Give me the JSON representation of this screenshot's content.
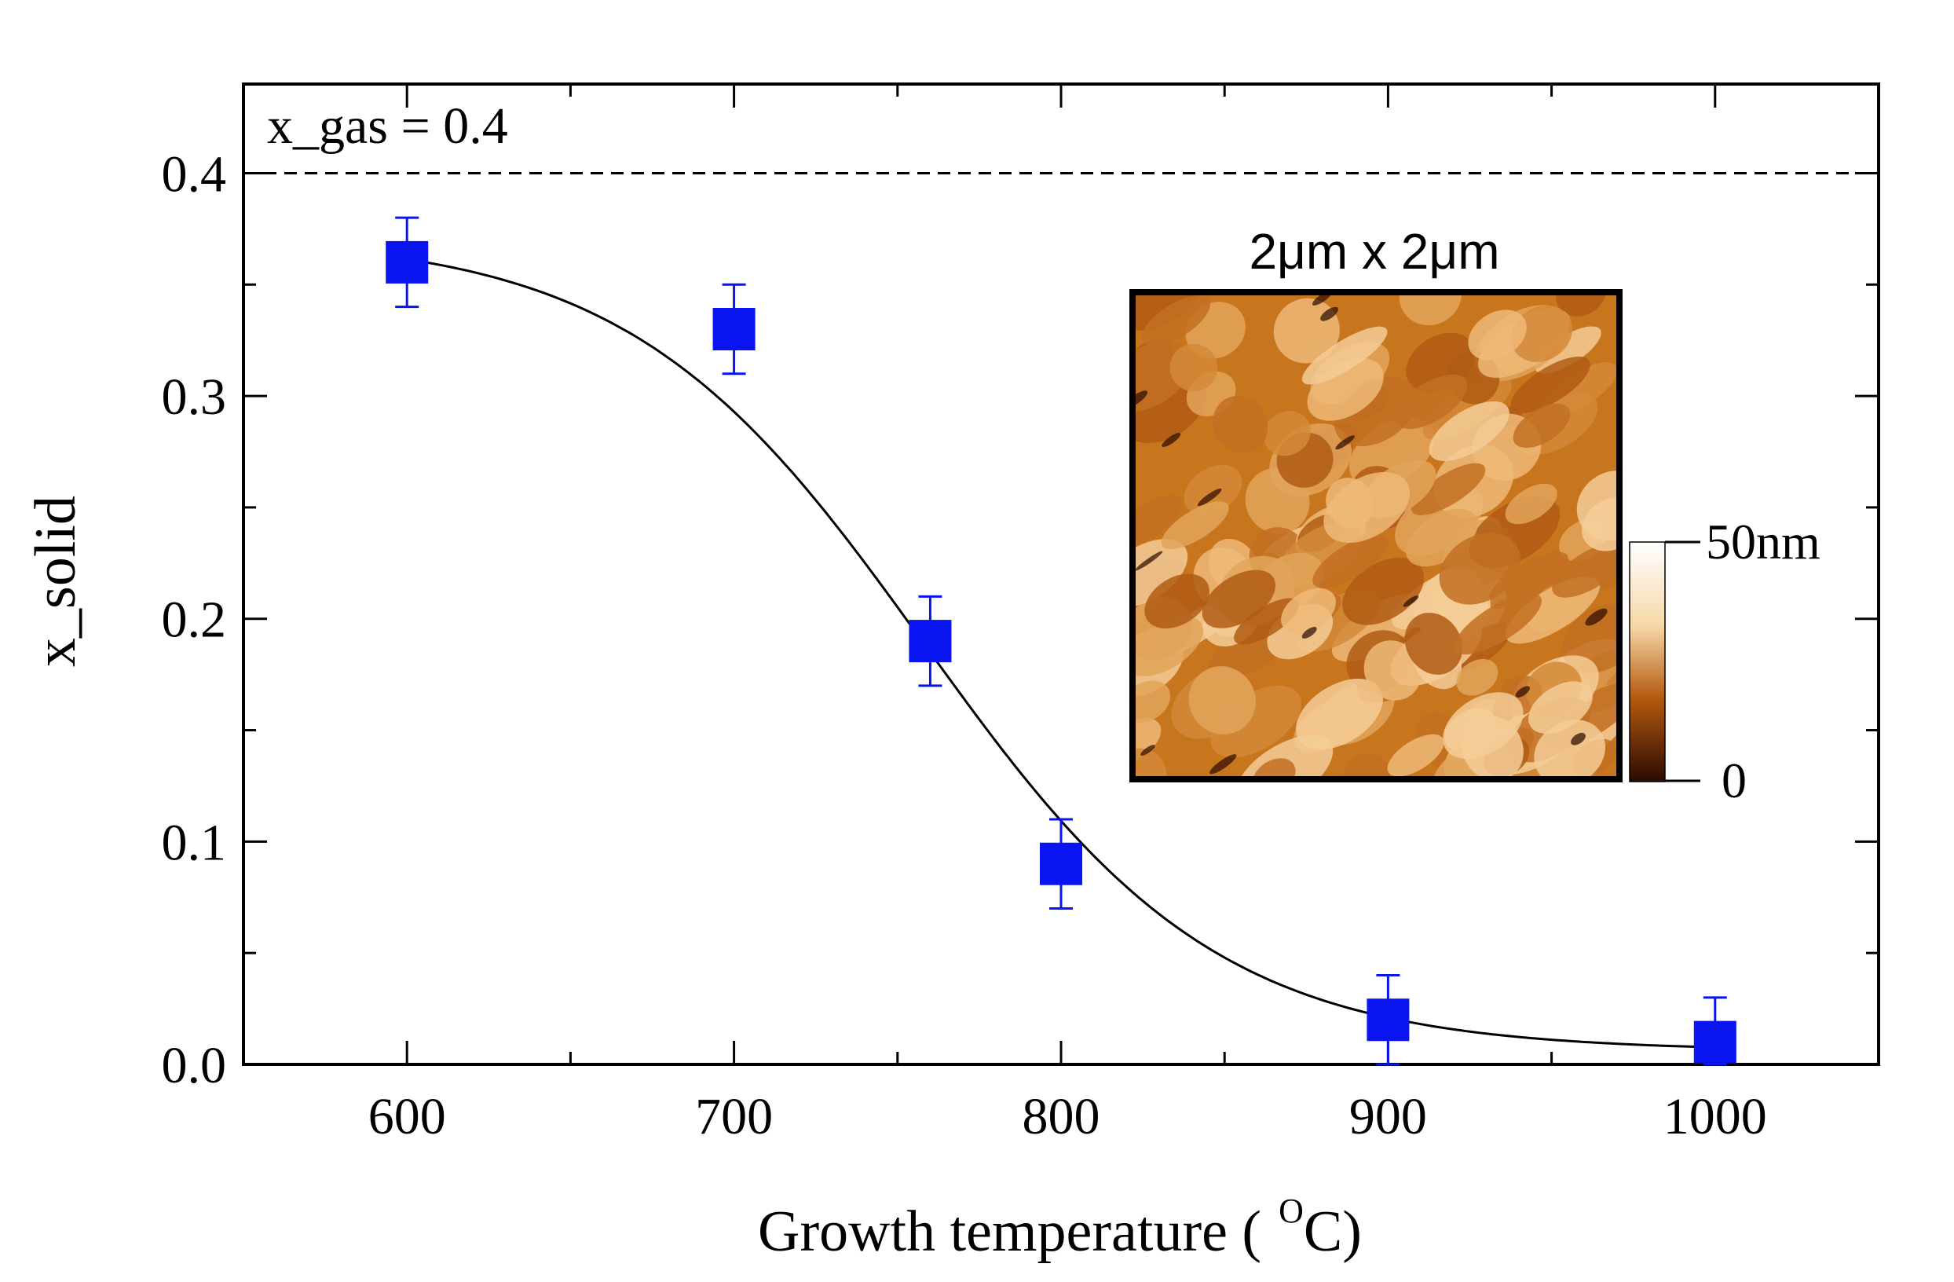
{
  "chart_data": {
    "type": "scatter",
    "xlabel_main": "Growth temperature (",
    "xlabel_unit_sup": "O",
    "xlabel_unit": "C)",
    "ylabel": "x_solid",
    "xlim": [
      550,
      1050
    ],
    "ylim": [
      0,
      0.44
    ],
    "x_ticks": [
      600,
      700,
      800,
      900,
      1000
    ],
    "x_tick_labels": [
      "600",
      "700",
      "800",
      "900",
      "1000"
    ],
    "x_minor_ticks": [
      650,
      750,
      850,
      950
    ],
    "y_ticks": [
      0,
      0.1,
      0.2,
      0.3,
      0.4
    ],
    "y_tick_labels": [
      "0.0",
      "0.1",
      "0.2",
      "0.3",
      "0.4"
    ],
    "y_minor_ticks": [
      0.05,
      0.15,
      0.25,
      0.35
    ],
    "series": [
      {
        "name": "x_solid",
        "x": [
          600,
          700,
          760,
          800,
          900,
          1000
        ],
        "y": [
          0.36,
          0.33,
          0.19,
          0.09,
          0.02,
          0.01
        ],
        "err": [
          0.02,
          0.02,
          0.02,
          0.02,
          0.02,
          0.02
        ],
        "marker": "square",
        "color": "#0a14f0"
      }
    ],
    "fit": {
      "type": "sigmoid",
      "x_start": 600,
      "x_end": 1000,
      "upper": 0.372,
      "lower": 0.006,
      "center": 758,
      "width": 45,
      "color": "#000000"
    },
    "reference_line": {
      "y": 0.4,
      "style": "dashed",
      "label": "x_gas = 0.4"
    },
    "grid": false
  },
  "inset": {
    "title": "2μm x 2μm",
    "colorbar_max_label": "50nm",
    "colorbar_min_label": "0",
    "colors": {
      "dark": "#2a0a00",
      "mid": "#b45a10",
      "base": "#c8761e",
      "light": "#f6d8a8",
      "white": "#ffffff"
    }
  }
}
